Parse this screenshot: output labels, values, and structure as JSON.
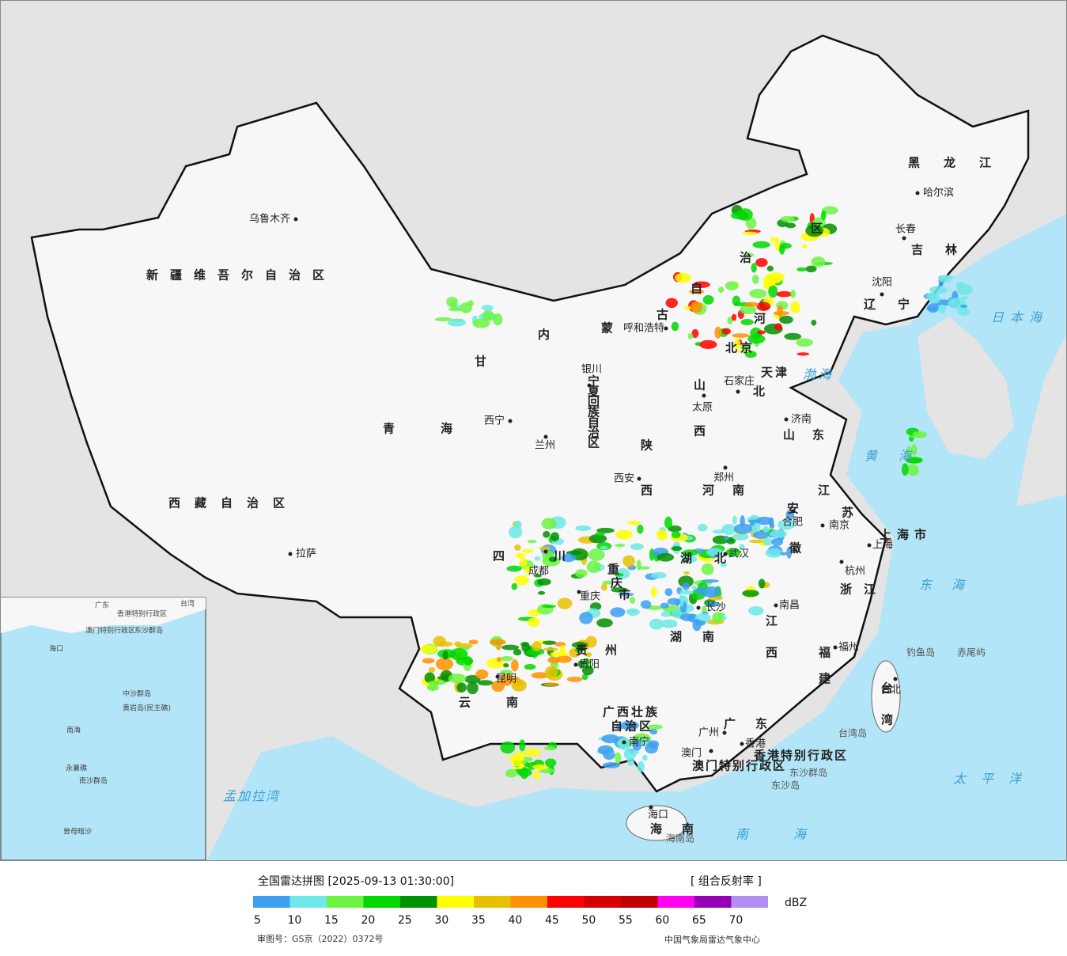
{
  "map": {
    "provinces": [
      "新疆维吾尔自治区",
      "西藏自治区",
      "青海",
      "甘",
      "内蒙古自治区",
      "黑龙江",
      "吉林",
      "辽宁",
      "河北",
      "北京",
      "天津",
      "山西",
      "山东",
      "陕西",
      "宁夏回族自治区",
      "河南",
      "江苏",
      "安徽",
      "上海市",
      "浙江",
      "湖北",
      "四川",
      "重庆市",
      "湖南",
      "江西",
      "福建",
      "贵州",
      "云南",
      "广西壮族自治区",
      "广东",
      "台湾",
      "海南",
      "香港特别行政区",
      "澳门特别行政区"
    ],
    "cities": [
      "乌鲁木齐",
      "拉萨",
      "西宁",
      "兰州",
      "银川",
      "呼和浩特",
      "石家庄",
      "太原",
      "济南",
      "郑州",
      "西安",
      "合肥",
      "南京",
      "上海",
      "杭州",
      "武汉",
      "成都",
      "重庆",
      "长沙",
      "南昌",
      "福州",
      "台北",
      "贵阳",
      "昆明",
      "南宁",
      "广州",
      "澳门",
      "香港",
      "海口",
      "沈阳",
      "长春",
      "哈尔滨"
    ],
    "seas": [
      "日本海",
      "渤海",
      "黄海",
      "东海",
      "太平洋",
      "南海",
      "孟加拉湾"
    ],
    "islands": [
      "钓鱼岛",
      "赤尾屿",
      "台湾岛",
      "东沙群岛",
      "东沙岛",
      "海南岛"
    ],
    "inset": [
      "南海",
      "海口",
      "广东",
      "台湾",
      "香港特别行政区",
      "澳门特别行政区",
      "东沙群岛",
      "中沙群岛",
      "黄岩岛(民主礁)",
      "永暑礁",
      "南沙群岛",
      "曾母暗沙"
    ]
  },
  "legend": {
    "title": "全国雷达拼图 [2025-09-13 01:30:00]",
    "product": "[ 组合反射率 ]",
    "unit": "dBZ",
    "ticks": [
      5,
      10,
      15,
      20,
      25,
      30,
      35,
      40,
      45,
      50,
      55,
      60,
      65,
      70
    ],
    "colors": [
      "#3c9ff0",
      "#6ee8e8",
      "#6cf542",
      "#00d800",
      "#009100",
      "#ffff00",
      "#e7c000",
      "#ff9000",
      "#ff0000",
      "#d60000",
      "#c00000",
      "#ff00f0",
      "#9600b4",
      "#ad90f0"
    ],
    "approval": "审图号：GS京（2022）0372号",
    "source": "中国气象局雷达气象中心"
  }
}
